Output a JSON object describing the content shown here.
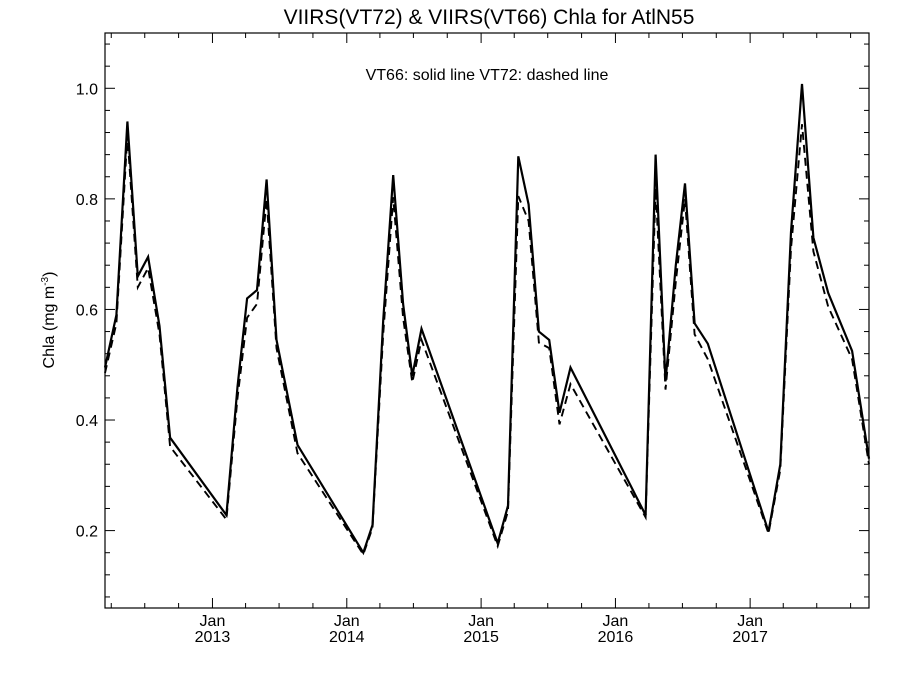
{
  "chart_data": {
    "type": "line",
    "title": "VIIRS(VT72) & VIIRS(VT66)  Chla for AtlN55",
    "annotation": "VT66: solid line   VT72: dashed line",
    "ylabel": "Chla (mg m",
    "ylabel_sup": "-3",
    "ylabel_close": ")",
    "ylim": [
      0.06,
      1.1
    ],
    "yticks": [
      0.2,
      0.4,
      0.6,
      0.8,
      1.0
    ],
    "yticklabels": [
      "0.2",
      "0.4",
      "0.6",
      "0.8",
      "1.0"
    ],
    "xlim": [
      "2012-03-15",
      "2017-11-20"
    ],
    "xticks": [
      {
        "date": "2013-01-01",
        "month": "Jan",
        "year": "2013"
      },
      {
        "date": "2014-01-01",
        "month": "Jan",
        "year": "2014"
      },
      {
        "date": "2015-01-01",
        "month": "Jan",
        "year": "2015"
      },
      {
        "date": "2016-01-01",
        "month": "Jan",
        "year": "2016"
      },
      {
        "date": "2017-01-01",
        "month": "Jan",
        "year": "2017"
      }
    ],
    "grid": false,
    "series": [
      {
        "name": "VT66",
        "style": "solid",
        "color": "#000000",
        "points": [
          [
            "2012-03-15",
            0.495
          ],
          [
            "2012-04-15",
            0.59
          ],
          [
            "2012-05-15",
            0.94
          ],
          [
            "2012-06-12",
            0.66
          ],
          [
            "2012-07-10",
            0.695
          ],
          [
            "2012-08-10",
            0.57
          ],
          [
            "2012-09-08",
            0.368
          ],
          [
            "2013-02-08",
            0.228
          ],
          [
            "2013-03-10",
            0.46
          ],
          [
            "2013-04-05",
            0.62
          ],
          [
            "2013-05-02",
            0.635
          ],
          [
            "2013-05-28",
            0.835
          ],
          [
            "2013-06-24",
            0.545
          ],
          [
            "2013-08-20",
            0.355
          ],
          [
            "2014-02-15",
            0.16
          ],
          [
            "2014-03-12",
            0.21
          ],
          [
            "2014-04-10",
            0.58
          ],
          [
            "2014-05-07",
            0.843
          ],
          [
            "2014-06-03",
            0.61
          ],
          [
            "2014-06-28",
            0.48
          ],
          [
            "2014-07-23",
            0.565
          ],
          [
            "2015-02-15",
            0.177
          ],
          [
            "2015-03-15",
            0.245
          ],
          [
            "2015-04-12",
            0.877
          ],
          [
            "2015-05-10",
            0.79
          ],
          [
            "2015-06-07",
            0.56
          ],
          [
            "2015-07-05",
            0.545
          ],
          [
            "2015-08-02",
            0.413
          ],
          [
            "2015-09-01",
            0.495
          ],
          [
            "2016-03-23",
            0.228
          ],
          [
            "2016-04-19",
            0.88
          ],
          [
            "2016-05-16",
            0.47
          ],
          [
            "2016-06-13",
            0.68
          ],
          [
            "2016-07-08",
            0.828
          ],
          [
            "2016-08-03",
            0.575
          ],
          [
            "2016-09-08",
            0.538
          ],
          [
            "2017-02-20",
            0.198
          ],
          [
            "2017-03-24",
            0.32
          ],
          [
            "2017-04-22",
            0.74
          ],
          [
            "2017-05-22",
            1.008
          ],
          [
            "2017-06-22",
            0.73
          ],
          [
            "2017-08-01",
            0.63
          ],
          [
            "2017-10-05",
            0.525
          ],
          [
            "2017-11-20",
            0.33
          ]
        ]
      },
      {
        "name": "VT72",
        "style": "dashed",
        "color": "#000000",
        "points": [
          [
            "2012-03-15",
            0.485
          ],
          [
            "2012-04-15",
            0.575
          ],
          [
            "2012-05-15",
            0.915
          ],
          [
            "2012-06-12",
            0.64
          ],
          [
            "2012-07-10",
            0.675
          ],
          [
            "2012-08-10",
            0.555
          ],
          [
            "2012-09-08",
            0.352
          ],
          [
            "2013-02-08",
            0.22
          ],
          [
            "2013-03-10",
            0.44
          ],
          [
            "2013-04-05",
            0.585
          ],
          [
            "2013-05-02",
            0.61
          ],
          [
            "2013-05-28",
            0.8
          ],
          [
            "2013-06-24",
            0.53
          ],
          [
            "2013-08-20",
            0.34
          ],
          [
            "2014-02-15",
            0.157
          ],
          [
            "2014-03-12",
            0.205
          ],
          [
            "2014-04-10",
            0.555
          ],
          [
            "2014-05-07",
            0.803
          ],
          [
            "2014-06-03",
            0.585
          ],
          [
            "2014-06-28",
            0.468
          ],
          [
            "2014-07-23",
            0.545
          ],
          [
            "2015-02-15",
            0.172
          ],
          [
            "2015-03-15",
            0.235
          ],
          [
            "2015-04-12",
            0.805
          ],
          [
            "2015-05-10",
            0.76
          ],
          [
            "2015-06-07",
            0.54
          ],
          [
            "2015-07-05",
            0.53
          ],
          [
            "2015-08-02",
            0.392
          ],
          [
            "2015-09-01",
            0.465
          ],
          [
            "2016-03-23",
            0.224
          ],
          [
            "2016-04-19",
            0.82
          ],
          [
            "2016-05-16",
            0.455
          ],
          [
            "2016-06-13",
            0.65
          ],
          [
            "2016-07-08",
            0.8
          ],
          [
            "2016-08-03",
            0.555
          ],
          [
            "2016-09-08",
            0.51
          ],
          [
            "2017-02-20",
            0.195
          ],
          [
            "2017-03-24",
            0.31
          ],
          [
            "2017-04-22",
            0.71
          ],
          [
            "2017-05-22",
            0.935
          ],
          [
            "2017-06-22",
            0.705
          ],
          [
            "2017-08-01",
            0.605
          ],
          [
            "2017-10-05",
            0.51
          ],
          [
            "2017-11-20",
            0.32
          ]
        ]
      }
    ]
  }
}
